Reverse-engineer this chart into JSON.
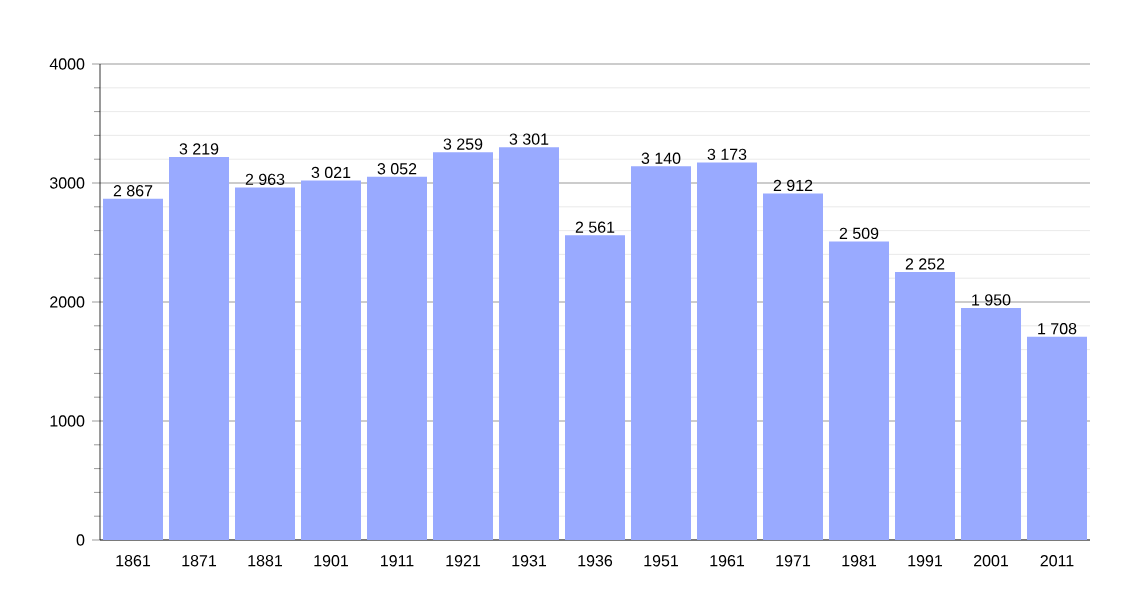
{
  "chart_data": {
    "type": "bar",
    "categories": [
      "1861",
      "1871",
      "1881",
      "1901",
      "1911",
      "1921",
      "1931",
      "1936",
      "1951",
      "1961",
      "1971",
      "1981",
      "1991",
      "2001",
      "2011"
    ],
    "values": [
      2867,
      3219,
      2963,
      3021,
      3052,
      3259,
      3301,
      2561,
      3140,
      3173,
      2912,
      2509,
      2252,
      1950,
      1708
    ],
    "value_labels": [
      "2 867",
      "3 219",
      "2 963",
      "3 021",
      "3 052",
      "3 259",
      "3 301",
      "2 561",
      "3 140",
      "3 173",
      "2 912",
      "2 509",
      "2 252",
      "1 950",
      "1 708"
    ],
    "color": "#99aaff",
    "ylim": [
      0,
      4000
    ],
    "yticks": [
      0,
      1000,
      2000,
      3000,
      4000
    ],
    "grid": "y"
  }
}
